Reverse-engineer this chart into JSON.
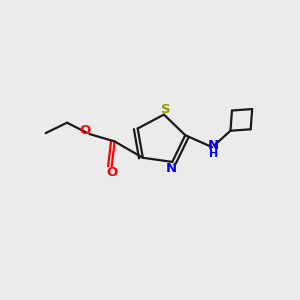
{
  "background_color": "#EBEBEB",
  "bond_color": "#1a1a1a",
  "S_color": "#999900",
  "N_color": "#0000FF",
  "O_color": "#FF0000",
  "NH_color": "#0000FF",
  "line_width": 1.6,
  "fig_w": 3.0,
  "fig_h": 3.0,
  "dpi": 100,
  "xlim": [
    0,
    1
  ],
  "ylim": [
    0,
    1
  ]
}
